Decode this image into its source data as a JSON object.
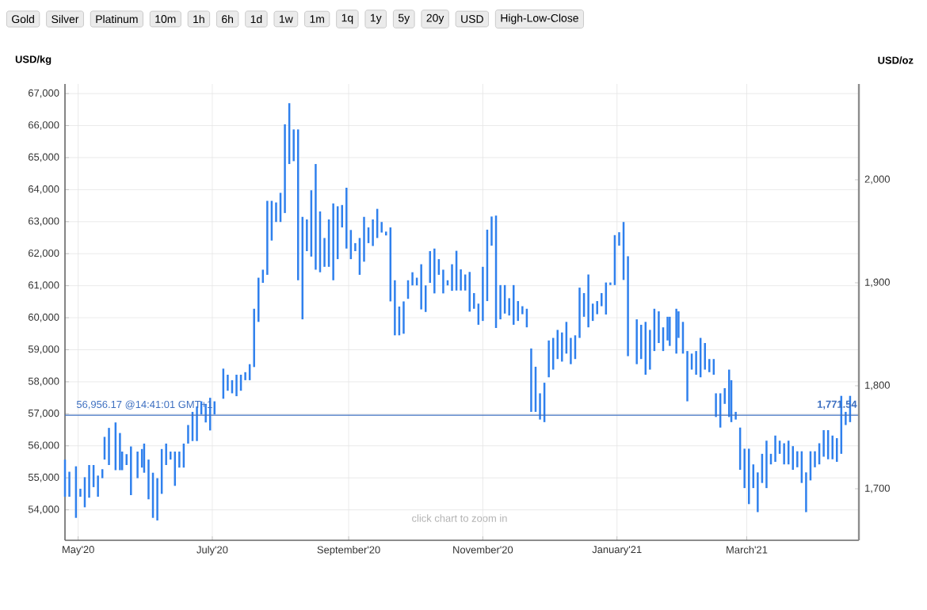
{
  "chart_data": {
    "type": "bar",
    "ylabel": "USD/kg",
    "y2label": "USD/oz",
    "color": "#2f80ed",
    "grid": true,
    "x": [
      "2020-04-25",
      "2020-04-27",
      "2020-04-30",
      "2020-05-02",
      "2020-05-04",
      "2020-05-06",
      "2020-05-08",
      "2020-05-10",
      "2020-05-12",
      "2020-05-13",
      "2020-05-15",
      "2020-05-18",
      "2020-05-20",
      "2020-05-21",
      "2020-05-23",
      "2020-05-25",
      "2020-05-28",
      "2020-05-30",
      "2020-05-31",
      "2020-06-02",
      "2020-06-04",
      "2020-06-06",
      "2020-06-08",
      "2020-06-10",
      "2020-06-12",
      "2020-06-14",
      "2020-06-16",
      "2020-06-18",
      "2020-06-20",
      "2020-06-22",
      "2020-06-24",
      "2020-06-26",
      "2020-06-28",
      "2020-06-30",
      "2020-07-02",
      "2020-07-06",
      "2020-07-08",
      "2020-07-10",
      "2020-07-12",
      "2020-07-14",
      "2020-07-16",
      "2020-07-18",
      "2020-07-20",
      "2020-07-22",
      "2020-07-24",
      "2020-07-26",
      "2020-07-28",
      "2020-07-30",
      "2020-08-01",
      "2020-08-03",
      "2020-08-05",
      "2020-08-07",
      "2020-08-09",
      "2020-08-11",
      "2020-08-13",
      "2020-08-15",
      "2020-08-17",
      "2020-08-19",
      "2020-08-21",
      "2020-08-23",
      "2020-08-25",
      "2020-08-27",
      "2020-08-29",
      "2020-08-31",
      "2020-09-02",
      "2020-09-04",
      "2020-09-06",
      "2020-09-08",
      "2020-09-10",
      "2020-09-12",
      "2020-09-14",
      "2020-09-16",
      "2020-09-18",
      "2020-09-20",
      "2020-09-22",
      "2020-09-24",
      "2020-09-26",
      "2020-09-28",
      "2020-09-30",
      "2020-10-02",
      "2020-10-04",
      "2020-10-06",
      "2020-10-08",
      "2020-10-10",
      "2020-10-12",
      "2020-10-14",
      "2020-10-16",
      "2020-10-18",
      "2020-10-20",
      "2020-10-22",
      "2020-10-24",
      "2020-10-26",
      "2020-10-28",
      "2020-10-30",
      "2020-11-01",
      "2020-11-03",
      "2020-11-05",
      "2020-11-07",
      "2020-11-09",
      "2020-11-11",
      "2020-11-13",
      "2020-11-15",
      "2020-11-17",
      "2020-11-19",
      "2020-11-21",
      "2020-11-23",
      "2020-11-25",
      "2020-11-27",
      "2020-11-29",
      "2020-12-01",
      "2020-12-03",
      "2020-12-05",
      "2020-12-07",
      "2020-12-09",
      "2020-12-11",
      "2020-12-13",
      "2020-12-15",
      "2020-12-17",
      "2020-12-19",
      "2020-12-21",
      "2020-12-23",
      "2020-12-25",
      "2020-12-27",
      "2020-12-29",
      "2020-12-31",
      "2021-01-02",
      "2021-01-04",
      "2021-01-06",
      "2021-01-10",
      "2021-01-12",
      "2021-01-14",
      "2021-01-16",
      "2021-01-18",
      "2021-01-20",
      "2021-01-22",
      "2021-01-24",
      "2021-01-25",
      "2021-01-28",
      "2021-01-29",
      "2021-01-31",
      "2021-02-02",
      "2021-02-04",
      "2021-02-06",
      "2021-02-08",
      "2021-02-10",
      "2021-02-12",
      "2021-02-14",
      "2021-02-15",
      "2021-02-17",
      "2021-02-19",
      "2021-02-21",
      "2021-02-22",
      "2021-02-24",
      "2021-02-26",
      "2021-02-28",
      "2021-03-02",
      "2021-03-04",
      "2021-03-06",
      "2021-03-08",
      "2021-03-10",
      "2021-03-12",
      "2021-03-14",
      "2021-03-16",
      "2021-03-18",
      "2021-03-20",
      "2021-03-22",
      "2021-03-24",
      "2021-03-26",
      "2021-03-28",
      "2021-03-30",
      "2021-04-01",
      "2021-04-03",
      "2021-04-05",
      "2021-04-07",
      "2021-04-09",
      "2021-04-11",
      "2021-04-13",
      "2021-04-15",
      "2021-04-17"
    ],
    "base": [
      54410,
      54410,
      53750,
      54410,
      54080,
      54380,
      54710,
      54410,
      54990,
      55570,
      55400,
      55240,
      55240,
      55240,
      55400,
      54460,
      54990,
      55320,
      55160,
      54330,
      53750,
      53670,
      54500,
      55400,
      55570,
      54750,
      55320,
      55320,
      56070,
      56150,
      56150,
      56980,
      56730,
      56480,
      56980,
      57470,
      57720,
      57640,
      57550,
      57720,
      58050,
      58050,
      58460,
      59870,
      61090,
      61340,
      62410,
      62990,
      62990,
      63270,
      64800,
      64890,
      61170,
      59950,
      62080,
      61910,
      61500,
      61420,
      61590,
      61590,
      61170,
      61830,
      62820,
      62160,
      61830,
      62080,
      61340,
      61750,
      62330,
      62240,
      62490,
      62660,
      62570,
      60510,
      59450,
      59450,
      59500,
      60590,
      61010,
      61010,
      60260,
      60180,
      61090,
      60760,
      61340,
      60760,
      61010,
      60840,
      60850,
      60850,
      60850,
      60190,
      60280,
      59780,
      59900,
      60520,
      62250,
      59680,
      59950,
      60130,
      60070,
      59780,
      59900,
      60110,
      59700,
      57060,
      57060,
      56820,
      56740,
      58140,
      58380,
      58710,
      58630,
      58880,
      58550,
      58710,
      59370,
      60030,
      59700,
      59900,
      60110,
      60360,
      60100,
      61020,
      61020,
      62250,
      61180,
      58800,
      58550,
      58710,
      58220,
      58380,
      58960,
      59210,
      58960,
      59290,
      59120,
      58880,
      59370,
      58880,
      57390,
      58380,
      58220,
      58140,
      58380,
      58300,
      58220,
      56900,
      56570,
      57310,
      56900,
      56740,
      56820,
      55250,
      54680,
      54180,
      54680,
      53930,
      54840,
      54680,
      55420,
      55500,
      55750,
      55420,
      55420,
      55250,
      55330,
      54840,
      53930,
      54920,
      55330,
      55420,
      55660,
      55580,
      55580,
      55500,
      55750,
      56650,
      56740
    ],
    "values": [
      1160,
      780,
      1610,
      250,
      940,
      1020,
      690,
      660,
      280,
      710,
      1160,
      1490,
      1160,
      580,
      340,
      1520,
      830,
      580,
      910,
      1240,
      1410,
      1320,
      1400,
      670,
      250,
      1070,
      500,
      750,
      580,
      910,
      1080,
      410,
      580,
      1020,
      410,
      940,
      500,
      410,
      670,
      500,
      250,
      500,
      1820,
      1380,
      410,
      2310,
      1240,
      610,
      910,
      2770,
      1900,
      990,
      4710,
      3200,
      990,
      2070,
      3300,
      1900,
      900,
      1480,
      2400,
      1650,
      700,
      1900,
      910,
      250,
      1150,
      1400,
      490,
      830,
      910,
      330,
      120,
      2310,
      1720,
      900,
      1010,
      580,
      410,
      240,
      1410,
      830,
      990,
      1400,
      490,
      740,
      160,
      830,
      1240,
      660,
      500,
      1240,
      490,
      660,
      1690,
      2230,
      910,
      3510,
      1070,
      890,
      540,
      1240,
      620,
      250,
      580,
      1980,
      1410,
      820,
      1230,
      1150,
      990,
      910,
      910,
      990,
      820,
      740,
      1570,
      740,
      1650,
      540,
      410,
      410,
      1000,
      80,
      1560,
      420,
      1810,
      3120,
      1400,
      1070,
      1650,
      1240,
      1320,
      990,
      740,
      740,
      910,
      1400,
      830,
      990,
      1570,
      500,
      740,
      1230,
      830,
      410,
      490,
      740,
      1070,
      490,
      1480,
      1310,
      240,
      1320,
      1230,
      1730,
      740,
      1240,
      910,
      1480,
      330,
      820,
      410,
      660,
      740,
      740,
      500,
      990,
      1240,
      910,
      500,
      660,
      830,
      910,
      740,
      740,
      1810,
      410,
      820
    ],
    "xlim": [
      "2020-04-25",
      "2021-04-21"
    ],
    "xticks": [
      {
        "value": "2020-05-01",
        "label": "May'20"
      },
      {
        "value": "2020-07-01",
        "label": "July'20"
      },
      {
        "value": "2020-09-01",
        "label": "September'20"
      },
      {
        "value": "2020-11-01",
        "label": "November'20"
      },
      {
        "value": "2021-01-01",
        "label": "January'21"
      },
      {
        "value": "2021-03-01",
        "label": "March'21"
      }
    ],
    "ylim": [
      53050,
      67300
    ],
    "yticks": [
      {
        "value": 54000,
        "label": "54,000"
      },
      {
        "value": 55000,
        "label": "55,000"
      },
      {
        "value": 56000,
        "label": "56,000"
      },
      {
        "value": 57000,
        "label": "57,000"
      },
      {
        "value": 58000,
        "label": "58,000"
      },
      {
        "value": 59000,
        "label": "59,000"
      },
      {
        "value": 60000,
        "label": "60,000"
      },
      {
        "value": 61000,
        "label": "61,000"
      },
      {
        "value": 62000,
        "label": "62,000"
      },
      {
        "value": 63000,
        "label": "63,000"
      },
      {
        "value": 64000,
        "label": "64,000"
      },
      {
        "value": 65000,
        "label": "65,000"
      },
      {
        "value": 66000,
        "label": "66,000"
      },
      {
        "value": 67000,
        "label": "67,000"
      }
    ],
    "y2lim": [
      1650,
      2093
    ],
    "y2ticks": [
      {
        "value": 1700,
        "label": "1,700"
      },
      {
        "value": 1800,
        "label": "1,800"
      },
      {
        "value": 1900,
        "label": "1,900"
      },
      {
        "value": 2000,
        "label": "2,000"
      }
    ],
    "ref_lines": [
      {
        "axis": "y",
        "value": 56956.17,
        "label": "56,956.17 @14:41:01 GMT+1",
        "color": "#3d6fc0"
      }
    ],
    "annotations": [
      "Gold",
      "Silver",
      "Platinum",
      "10m",
      "1h",
      "6h",
      "1d",
      "1w",
      "1m",
      "1q",
      "1y",
      "5y",
      "20y",
      "USD",
      "High-Low-Close",
      "click chart to zoom in",
      {
        "text": "1,771.54",
        "x": "2021-04-21",
        "y": 56956.17
      }
    ]
  }
}
